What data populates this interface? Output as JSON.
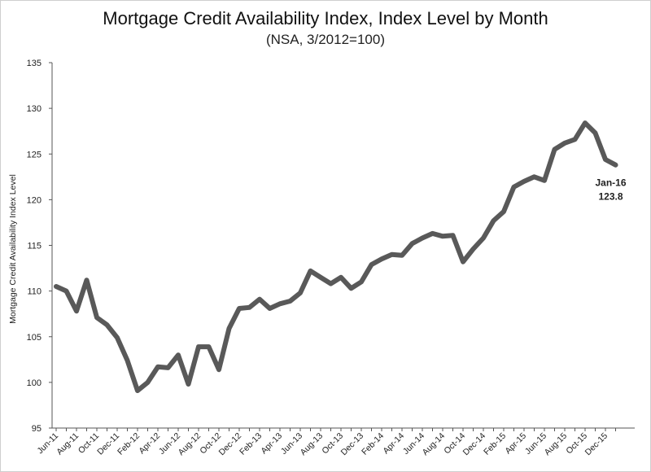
{
  "chart_data": {
    "type": "line",
    "title": "Mortgage Credit Availability Index, Index Level by Month",
    "subtitle": "(NSA, 3/2012=100)",
    "xlabel": "",
    "ylabel": "Mortgage Credit Availability Index Level",
    "ylim": [
      95,
      135
    ],
    "yticks": [
      95,
      100,
      105,
      110,
      115,
      120,
      125,
      130,
      135
    ],
    "grid": false,
    "legend": "none",
    "line_color": "#595959",
    "x": [
      "Jun-11",
      "Jul-11",
      "Aug-11",
      "Sep-11",
      "Oct-11",
      "Nov-11",
      "Dec-11",
      "Jan-12",
      "Feb-12",
      "Mar-12",
      "Apr-12",
      "May-12",
      "Jun-12",
      "Jul-12",
      "Aug-12",
      "Sep-12",
      "Oct-12",
      "Nov-12",
      "Dec-12",
      "Jan-13",
      "Feb-13",
      "Mar-13",
      "Apr-13",
      "May-13",
      "Jun-13",
      "Jul-13",
      "Aug-13",
      "Sep-13",
      "Oct-13",
      "Nov-13",
      "Dec-13",
      "Jan-14",
      "Feb-14",
      "Mar-14",
      "Apr-14",
      "May-14",
      "Jun-14",
      "Jul-14",
      "Aug-14",
      "Sep-14",
      "Oct-14",
      "Nov-14",
      "Dec-14",
      "Jan-15",
      "Feb-15",
      "Mar-15",
      "Apr-15",
      "May-15",
      "Jun-15",
      "Jul-15",
      "Aug-15",
      "Sep-15",
      "Oct-15",
      "Nov-15",
      "Dec-15",
      "Jan-16"
    ],
    "x_tick_labels": [
      "Jun-11",
      "Aug-11",
      "Oct-11",
      "Dec-11",
      "Feb-12",
      "Apr-12",
      "Jun-12",
      "Aug-12",
      "Oct-12",
      "Dec-12",
      "Feb-13",
      "Apr-13",
      "Jun-13",
      "Aug-13",
      "Oct-13",
      "Dec-13",
      "Feb-14",
      "Apr-14",
      "Jun-14",
      "Aug-14",
      "Oct-14",
      "Dec-14",
      "Feb-15",
      "Apr-15",
      "Jun-15",
      "Aug-15",
      "Oct-15",
      "Dec-15"
    ],
    "values": [
      110.5,
      110.0,
      107.8,
      111.2,
      107.1,
      106.3,
      104.9,
      102.4,
      99.1,
      100.0,
      101.7,
      101.6,
      103.0,
      99.8,
      103.9,
      103.9,
      101.4,
      105.9,
      108.1,
      108.2,
      109.1,
      108.1,
      108.6,
      108.9,
      109.8,
      112.2,
      111.5,
      110.8,
      111.5,
      110.3,
      111.0,
      112.9,
      113.5,
      114.0,
      113.9,
      115.2,
      115.8,
      116.3,
      116.0,
      116.1,
      113.2,
      114.6,
      115.8,
      117.7,
      118.7,
      121.4,
      122.0,
      122.5,
      122.1,
      125.5,
      126.2,
      126.6,
      128.4,
      127.3,
      124.4,
      123.8
    ],
    "annotation": {
      "x": "Jan-16",
      "label_line1": "Jan-16",
      "label_line2": "123.8"
    }
  }
}
